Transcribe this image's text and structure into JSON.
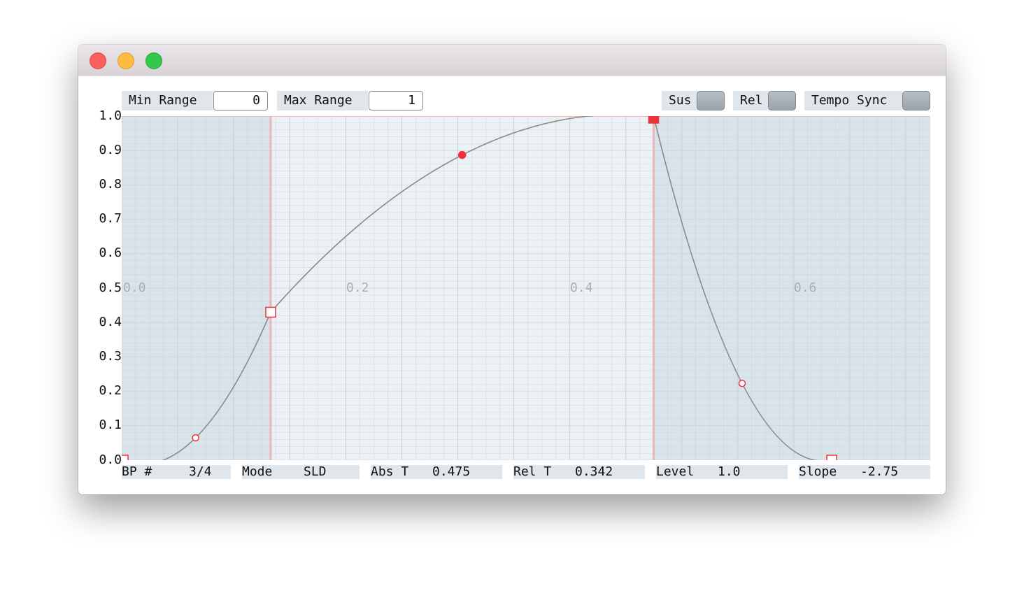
{
  "controls": {
    "min_range_label": "Min Range",
    "min_range_value": "0",
    "max_range_label": "Max Range",
    "max_range_value": "1",
    "sus_label": "Sus",
    "rel_label": "Rel",
    "tempo_sync_label": "Tempo Sync"
  },
  "axis": {
    "y_ticks": [
      "1.0",
      "0.9",
      "0.8",
      "0.7",
      "0.6",
      "0.5",
      "0.4",
      "0.3",
      "0.2",
      "0.1",
      "0.0"
    ],
    "x_ticks": [
      "0.0",
      "0.2",
      "0.4",
      "0.6"
    ]
  },
  "envelope": {
    "x_range": [
      0,
      0.722
    ],
    "y_range": [
      0,
      1
    ],
    "breakpoints": [
      {
        "t": 0.0,
        "level": 0.0,
        "selected": false
      },
      {
        "t": 0.133,
        "level": 0.43,
        "selected": false
      },
      {
        "t": 0.475,
        "level": 1.0,
        "selected": true
      },
      {
        "t": 0.634,
        "level": 0.0,
        "selected": false
      }
    ],
    "curve_handles": [
      {
        "t": 0.066,
        "level": 0.065,
        "active": false
      },
      {
        "t": 0.304,
        "level": 0.887,
        "active": true
      },
      {
        "t": 0.554,
        "level": 0.223,
        "active": false
      }
    ],
    "colors": {
      "dark_band": "#d9e3ea",
      "light_band": "#ebf1f5",
      "grid": "#c6d1d9",
      "curve": "#8a8a8a",
      "marker": "#f0303a",
      "vline": "#eab6b9"
    }
  },
  "status": {
    "bp_label": "BP #",
    "bp_value": "3/4",
    "mode_label": "Mode",
    "mode_value": "SLD",
    "abs_t_label": "Abs T",
    "abs_t_value": "0.475",
    "rel_t_label": "Rel T",
    "rel_t_value": "0.342",
    "level_label": "Level",
    "level_value": "1.0",
    "slope_label": "Slope",
    "slope_value": "-2.75"
  }
}
